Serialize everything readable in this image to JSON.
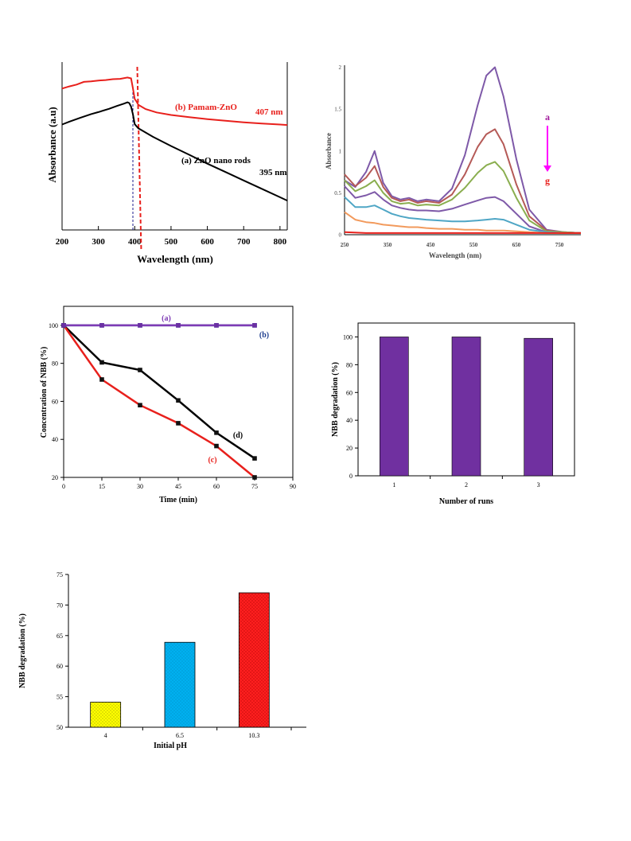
{
  "chart_data": [
    {
      "type": "line",
      "xlabel": "Wavelength (nm)",
      "ylabel": "Absorbance (a.u)",
      "xlim": [
        200,
        820
      ],
      "ylim": [
        0,
        1
      ],
      "xticks": [
        200,
        300,
        400,
        500,
        600,
        700,
        800
      ],
      "y_ticks_shown": false,
      "vlines": [
        {
          "x": 395,
          "style": "dashed",
          "color": "#1f1f8f"
        },
        {
          "x": 407,
          "style": "dashed",
          "color": "#e8201c"
        }
      ],
      "series": [
        {
          "name": "(b) Pamam-ZnO",
          "color": "#e8201c",
          "annotation": "407 nm",
          "x": [
            200,
            220,
            240,
            260,
            280,
            300,
            320,
            340,
            360,
            380,
            390,
            395,
            400,
            405,
            410,
            430,
            460,
            500,
            550,
            600,
            650,
            700,
            750,
            800,
            820
          ],
          "y": [
            0.842,
            0.855,
            0.866,
            0.882,
            0.885,
            0.89,
            0.893,
            0.898,
            0.9,
            0.908,
            0.903,
            0.845,
            0.78,
            0.765,
            0.745,
            0.72,
            0.7,
            0.685,
            0.672,
            0.66,
            0.65,
            0.641,
            0.634,
            0.628,
            0.625
          ]
        },
        {
          "name": "(a) ZnO nano rods",
          "color": "#000000",
          "annotation": "395 nm",
          "x": [
            200,
            220,
            250,
            280,
            300,
            330,
            350,
            370,
            380,
            385,
            390,
            395,
            400,
            410,
            420,
            450,
            500,
            550,
            600,
            650,
            700,
            750,
            800,
            820
          ],
          "y": [
            0.628,
            0.645,
            0.668,
            0.69,
            0.702,
            0.722,
            0.738,
            0.752,
            0.76,
            0.756,
            0.735,
            0.69,
            0.63,
            0.605,
            0.593,
            0.555,
            0.5,
            0.448,
            0.395,
            0.345,
            0.295,
            0.245,
            0.195,
            0.175
          ]
        }
      ]
    },
    {
      "type": "line",
      "xlabel": "Wavelength (nm)",
      "ylabel": "Absorbance",
      "xlim": [
        250,
        800
      ],
      "ylim": [
        0,
        2.1
      ],
      "xticks": [
        250,
        350,
        450,
        550,
        650,
        750
      ],
      "yticks": [
        0,
        0.5,
        1,
        1.5,
        2
      ],
      "arrow": {
        "from": "a",
        "to": "g",
        "color": "#ff00ff"
      },
      "series": [
        {
          "color": "#7e59a8",
          "x": [
            250,
            275,
            300,
            320,
            340,
            360,
            380,
            400,
            420,
            440,
            470,
            500,
            530,
            560,
            580,
            600,
            620,
            650,
            680,
            720,
            760,
            800
          ],
          "y": [
            0.65,
            0.57,
            0.75,
            1.0,
            0.62,
            0.46,
            0.42,
            0.44,
            0.4,
            0.42,
            0.4,
            0.55,
            0.95,
            1.55,
            1.9,
            2.0,
            1.65,
            0.9,
            0.3,
            0.06,
            0.03,
            0.02
          ]
        },
        {
          "color": "#b55a57",
          "x": [
            250,
            275,
            300,
            320,
            340,
            360,
            380,
            400,
            420,
            440,
            470,
            500,
            530,
            560,
            580,
            600,
            620,
            650,
            680,
            720,
            760,
            800
          ],
          "y": [
            0.72,
            0.58,
            0.68,
            0.82,
            0.57,
            0.44,
            0.4,
            0.42,
            0.38,
            0.4,
            0.38,
            0.48,
            0.72,
            1.05,
            1.2,
            1.26,
            1.08,
            0.6,
            0.22,
            0.05,
            0.03,
            0.02
          ]
        },
        {
          "color": "#8aae4f",
          "x": [
            250,
            275,
            300,
            320,
            340,
            360,
            380,
            400,
            420,
            440,
            470,
            500,
            530,
            560,
            580,
            600,
            620,
            650,
            680,
            720,
            760,
            800
          ],
          "y": [
            0.65,
            0.52,
            0.58,
            0.65,
            0.5,
            0.4,
            0.37,
            0.38,
            0.35,
            0.36,
            0.35,
            0.42,
            0.56,
            0.74,
            0.83,
            0.87,
            0.76,
            0.44,
            0.17,
            0.04,
            0.03,
            0.02
          ]
        },
        {
          "color": "#7e59a8",
          "x": [
            250,
            275,
            300,
            320,
            340,
            360,
            380,
            400,
            420,
            440,
            470,
            500,
            530,
            560,
            580,
            600,
            620,
            650,
            680,
            720,
            760,
            800
          ],
          "y": [
            0.58,
            0.44,
            0.47,
            0.51,
            0.42,
            0.35,
            0.32,
            0.3,
            0.29,
            0.29,
            0.28,
            0.31,
            0.36,
            0.41,
            0.44,
            0.45,
            0.4,
            0.25,
            0.1,
            0.03,
            0.02,
            0.02
          ]
        },
        {
          "color": "#4fa6c5",
          "x": [
            250,
            275,
            300,
            320,
            340,
            360,
            380,
            400,
            420,
            440,
            470,
            500,
            530,
            560,
            580,
            600,
            620,
            650,
            680,
            720,
            760,
            800
          ],
          "y": [
            0.45,
            0.33,
            0.33,
            0.35,
            0.3,
            0.25,
            0.22,
            0.2,
            0.19,
            0.18,
            0.17,
            0.16,
            0.16,
            0.17,
            0.18,
            0.19,
            0.18,
            0.12,
            0.06,
            0.03,
            0.02,
            0.02
          ]
        },
        {
          "color": "#f29a5c",
          "x": [
            250,
            275,
            300,
            320,
            340,
            360,
            380,
            400,
            420,
            440,
            470,
            500,
            530,
            560,
            580,
            600,
            620,
            650,
            680,
            720,
            760,
            800
          ],
          "y": [
            0.27,
            0.18,
            0.15,
            0.14,
            0.12,
            0.11,
            0.1,
            0.09,
            0.09,
            0.08,
            0.07,
            0.07,
            0.06,
            0.06,
            0.05,
            0.05,
            0.05,
            0.04,
            0.03,
            0.02,
            0.02,
            0.02
          ]
        },
        {
          "color": "#e8201c",
          "x": [
            250,
            300,
            350,
            400,
            450,
            500,
            550,
            600,
            650,
            700,
            750,
            800
          ],
          "y": [
            0.03,
            0.02,
            0.02,
            0.02,
            0.02,
            0.02,
            0.02,
            0.02,
            0.02,
            0.02,
            0.02,
            0.02
          ]
        }
      ]
    },
    {
      "type": "line",
      "xlabel": "Time (min)",
      "ylabel": "Concentration of  NBB  (%)",
      "xlim": [
        0,
        90
      ],
      "ylim": [
        20,
        110
      ],
      "xticks": [
        0,
        15,
        30,
        45,
        60,
        75,
        90
      ],
      "yticks": [
        20,
        40,
        60,
        80,
        100
      ],
      "series": [
        {
          "name": "(a)",
          "color": "#7e3bb5",
          "x": [
            0,
            15,
            30,
            45,
            60,
            75
          ],
          "y": [
            100,
            100,
            100,
            100,
            100,
            100
          ]
        },
        {
          "name": "(b)",
          "color": "#1f3f8f",
          "x": [
            0,
            15,
            30,
            45,
            60,
            75
          ],
          "y": [
            100,
            100,
            100,
            100,
            100,
            100
          ]
        },
        {
          "name": "(d)",
          "color": "#000000",
          "x": [
            0,
            15,
            30,
            45,
            60,
            75
          ],
          "y": [
            100,
            80.5,
            76.5,
            60.5,
            43.5,
            30
          ]
        },
        {
          "name": "(c)",
          "color": "#e8201c",
          "x": [
            0,
            15,
            30,
            45,
            60,
            75
          ],
          "y": [
            100,
            71.5,
            58,
            48.5,
            36.5,
            20
          ]
        }
      ]
    },
    {
      "type": "bar",
      "xlabel": "Number of runs",
      "ylabel": "NBB degradation (%)",
      "categories": [
        "1",
        "2",
        "3"
      ],
      "values": [
        100,
        100,
        99
      ],
      "ylim": [
        0,
        110
      ],
      "yticks": [
        0,
        20,
        40,
        60,
        80,
        100
      ],
      "color": "#7030a0"
    },
    {
      "type": "bar",
      "xlabel": "Initial pH",
      "ylabel": "NBB degradation (%)",
      "categories": [
        "4",
        "6.5",
        "10.3"
      ],
      "values": [
        54.1,
        63.9,
        72.0
      ],
      "ylim": [
        50,
        75
      ],
      "yticks": [
        50,
        55,
        60,
        65,
        70,
        75
      ],
      "colors": [
        "#ffff00",
        "#00b0f0",
        "#ff1f1f"
      ]
    }
  ]
}
